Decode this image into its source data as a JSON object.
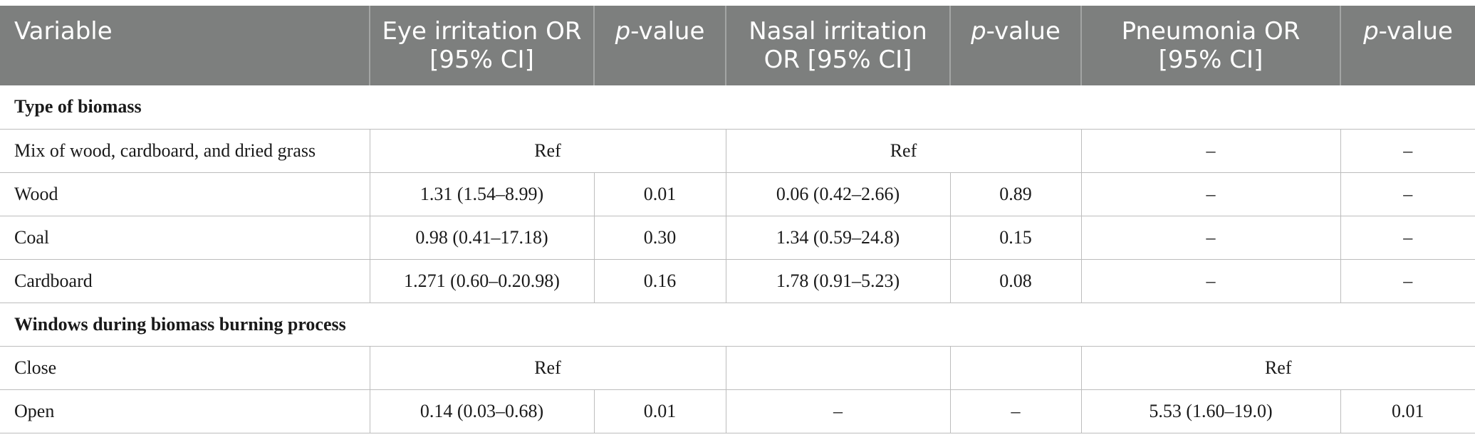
{
  "header": {
    "variable": "Variable",
    "eye": "Eye irritation OR [95% CI]",
    "eye_p_italic": "p",
    "eye_p_rest": "-value",
    "nasal": "Nasal irritation OR [95% CI]",
    "nasal_p_italic": "p",
    "nasal_p_rest": "-value",
    "pneumonia": "Pneumonia OR [95% CI]",
    "pneumonia_p_italic": "p",
    "pneumonia_p_rest": "-value"
  },
  "sections": {
    "biomass": {
      "title": "Type of biomass",
      "rows": [
        {
          "variable": "Mix of wood, cardboard, and dried grass",
          "eye": "Ref",
          "nasal": "Ref",
          "pneumonia": "–",
          "pneumonia_p": "–"
        },
        {
          "variable": "Wood",
          "eye": "1.31 (1.54–8.99)",
          "eye_p": "0.01",
          "nasal": "0.06 (0.42–2.66)",
          "nasal_p": "0.89",
          "pneumonia": "–",
          "pneumonia_p": "–"
        },
        {
          "variable": "Coal",
          "eye": "0.98 (0.41–17.18)",
          "eye_p": "0.30",
          "nasal": "1.34 (0.59–24.8)",
          "nasal_p": "0.15",
          "pneumonia": "–",
          "pneumonia_p": "–"
        },
        {
          "variable": "Cardboard",
          "eye": "1.271 (0.60–0.20.98)",
          "eye_p": "0.16",
          "nasal": "1.78 (0.91–5.23)",
          "nasal_p": "0.08",
          "pneumonia": "–",
          "pneumonia_p": "–"
        }
      ]
    },
    "windows": {
      "title": "Windows during biomass burning process",
      "rows": [
        {
          "variable": "Close",
          "eye": "Ref",
          "nasal": "",
          "nasal_p": "",
          "pneumonia": "Ref"
        },
        {
          "variable": "Open",
          "eye": "0.14 (0.03–0.68)",
          "eye_p": "0.01",
          "nasal": "–",
          "nasal_p": "–",
          "pneumonia": "5.53 (1.60–19.0)",
          "pneumonia_p": "0.01"
        }
      ]
    }
  }
}
